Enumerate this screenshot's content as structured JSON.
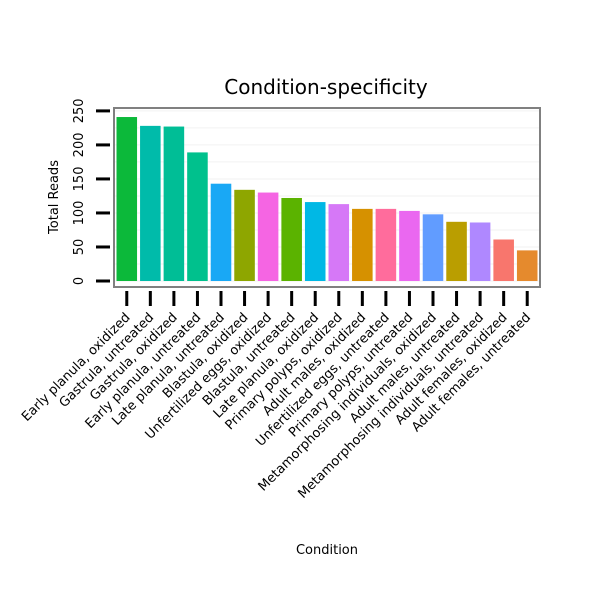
{
  "chart_data": {
    "type": "bar",
    "title": "Condition-specificity",
    "xlabel": "Condition",
    "ylabel": "Total Reads",
    "ylim": [
      0,
      255
    ],
    "yticks": [
      0,
      50,
      100,
      150,
      200,
      250
    ],
    "grid": true,
    "legend": "none",
    "categories": [
      "Early planula, oxidized",
      "Gastrula, untreated",
      "Gastrula, oxidized",
      "Early planula, untreated",
      "Late planula, untreated",
      "Blastula, oxidized",
      "Unfertilized eggs, oxidized",
      "Blastula, untreated",
      "Late planula, oxidized",
      "Primary polyps, oxidized",
      "Adult males, oxidized",
      "Unfertilized eggs, untreated",
      "Primary polyps, untreated",
      "Metamorphosing individuals, oxidized",
      "Adult males, untreated",
      "Metamorphosing individuals, untreated",
      "Adult females, oxidized",
      "Adult females, untreated"
    ],
    "values": [
      241,
      228,
      227,
      189,
      143,
      134,
      130,
      122,
      116,
      113,
      106,
      106,
      103,
      98,
      87,
      86,
      61,
      45
    ],
    "colors": [
      "#0CB93A",
      "#00BBAA",
      "#00BE96",
      "#00C18D",
      "#19A8F5",
      "#8EA600",
      "#F565E3",
      "#5BB300",
      "#00B8E5",
      "#D678F7",
      "#D69100",
      "#FF6C9C",
      "#EA68F0",
      "#619CFF",
      "#BA9E00",
      "#AF88FF",
      "#F8766D",
      "#E58A2D"
    ]
  }
}
